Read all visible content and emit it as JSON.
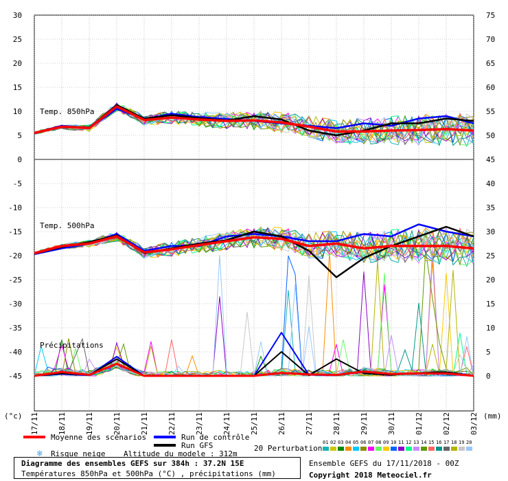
{
  "chart_data": {
    "type": "line",
    "panels": [
      {
        "label": "Temp. 850hPa"
      },
      {
        "label": "Temp. 500hPa"
      },
      {
        "label": "Précipitations"
      }
    ],
    "x_dates": [
      "17/11",
      "18/11",
      "19/11",
      "20/11",
      "21/11",
      "22/11",
      "23/11",
      "24/11",
      "25/11",
      "26/11",
      "27/11",
      "28/11",
      "29/11",
      "30/11",
      "01/12",
      "02/12",
      "03/12"
    ],
    "y_left_ticks": [
      30,
      25,
      20,
      15,
      10,
      5,
      0,
      -5,
      -10,
      -15,
      -20,
      -25,
      -30,
      -35,
      -40,
      -45
    ],
    "y_right_ticks": [
      75,
      70,
      65,
      60,
      55,
      50,
      45,
      40,
      35,
      30,
      25,
      20,
      15,
      10,
      5,
      0
    ],
    "y_left_unit": "(°c)",
    "y_right_unit": "(mm)",
    "ylim": [
      -45,
      30
    ],
    "series": {
      "mean850": [
        5.5,
        6.8,
        6.5,
        11.0,
        8.2,
        8.7,
        8.3,
        8.0,
        8.1,
        7.7,
        6.8,
        5.8,
        5.8,
        6.0,
        6.1,
        6.3,
        6.0
      ],
      "control850": [
        5.5,
        7.0,
        6.5,
        10.5,
        8.4,
        9.5,
        8.8,
        8.4,
        8.0,
        7.5,
        7.0,
        6.5,
        7.5,
        7.0,
        8.5,
        9.0,
        7.5
      ],
      "gfs850": [
        5.6,
        6.7,
        6.6,
        11.3,
        8.5,
        9.2,
        8.6,
        8.1,
        9.0,
        8.3,
        6.0,
        5.0,
        6.0,
        7.5,
        7.5,
        8.5,
        8.0
      ],
      "mean500": [
        -19.5,
        -18.0,
        -17.5,
        -16.0,
        -19.3,
        -18.7,
        -17.8,
        -17.0,
        -16.2,
        -16.5,
        -18.0,
        -17.5,
        -18.5,
        -18.0,
        -18.0,
        -18.0,
        -18.5
      ],
      "control500": [
        -19.7,
        -18.5,
        -17.5,
        -15.5,
        -19.0,
        -18.0,
        -18.0,
        -16.0,
        -15.5,
        -16.0,
        -17.0,
        -17.0,
        -15.5,
        -16.0,
        -13.5,
        -15.0,
        -16.0
      ],
      "gfs500": [
        -19.6,
        -18.2,
        -17.2,
        -15.8,
        -19.5,
        -18.5,
        -17.5,
        -16.8,
        -15.0,
        -16.0,
        -19.0,
        -24.5,
        -20.5,
        -18.0,
        -16.0,
        -14.0,
        -16.0
      ],
      "meanPrecip": [
        0,
        0.8,
        0.2,
        2.5,
        0,
        0,
        0,
        0,
        0,
        0.6,
        0.3,
        0.2,
        0.9,
        0.4,
        0.5,
        0.5,
        0
      ],
      "controlPrecip": [
        0,
        0.4,
        0.1,
        4.0,
        0,
        0,
        0,
        0,
        0,
        9.0,
        0.2,
        0.1,
        0.8,
        0.3,
        0.5,
        0.4,
        0
      ],
      "gfsPrecip": [
        0,
        0.5,
        0.2,
        3.5,
        0,
        0,
        0,
        0,
        0,
        5.0,
        0.1,
        3.5,
        0.5,
        0.2,
        0.6,
        0.8,
        0
      ]
    }
  },
  "legend": {
    "mean": "Moyenne des scénarios",
    "control": "Run de contrôle",
    "gfs": "Run GFS",
    "snow": "Risque neige",
    "altitude": "Altitude du modele : 312m",
    "perturbations": "20 Perturbations",
    "pert_numbers": [
      "01",
      "02",
      "03",
      "04",
      "05",
      "06",
      "07",
      "08",
      "09",
      "10",
      "11",
      "12",
      "13",
      "14",
      "15",
      "16",
      "17",
      "18",
      "19",
      "20"
    ],
    "pert_colors": [
      "#19b4b4",
      "#c8c800",
      "#008c00",
      "#ff8c00",
      "#00c8ff",
      "#8c8c00",
      "#ff00ff",
      "#64ff64",
      "#ffc800",
      "#0064ff",
      "#8c00c8",
      "#00ff8c",
      "#c88cff",
      "#649600",
      "#ff6464",
      "#00968c",
      "#646464",
      "#b4b400",
      "#c8c8c8",
      "#96c8ff"
    ],
    "colors": {
      "mean": "#ff0000",
      "control": "#0000ff",
      "gfs": "#000000"
    }
  },
  "footer": {
    "title": "Diagramme des ensembles GEFS sur 384h : 37.2N 15E",
    "subtitle": "Températures 850hPa et 500hPa (°C) , précipitations (mm)",
    "ensemble": "Ensemble GEFS du 17/11/2018 - 00Z",
    "copyright": "Copyright 2018 Meteociel.fr"
  }
}
